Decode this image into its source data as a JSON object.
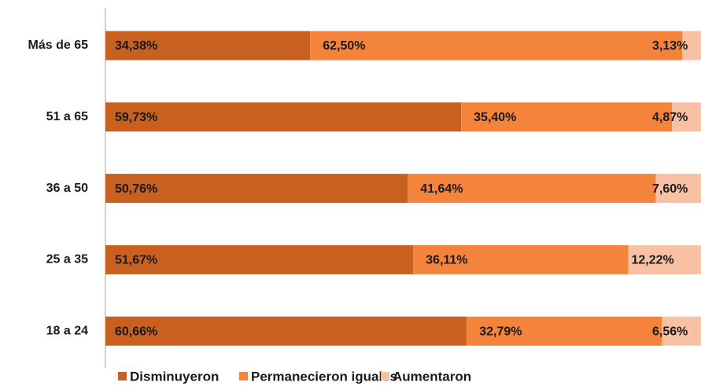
{
  "chart_data": {
    "type": "stacked-bar-horizontal",
    "categories": [
      "Más de 65",
      "51 a 65",
      "36 a 50",
      "25 a 35",
      "18 a 24"
    ],
    "series": [
      {
        "name": "Disminuyeron",
        "color": "#c8601f",
        "values": [
          34.38,
          59.73,
          50.76,
          51.67,
          60.66
        ],
        "value_labels": [
          "34,38%",
          "59,73%",
          "50,76%",
          "51,67%",
          "60,66%"
        ]
      },
      {
        "name": "Permanecieron iguales",
        "color": "#f4843c",
        "values": [
          62.5,
          35.4,
          41.64,
          36.11,
          32.79
        ],
        "value_labels": [
          "62,50%",
          "35,40%",
          "41,64%",
          "36,11%",
          "32,79%"
        ]
      },
      {
        "name": "Aumentaron",
        "color": "#f8c1a3",
        "values": [
          3.13,
          4.87,
          7.6,
          12.22,
          6.56
        ],
        "value_labels": [
          "3,13%",
          "4,87%",
          "7,60%",
          "12,22%",
          "6,56%"
        ]
      }
    ],
    "xlim": [
      0,
      100
    ],
    "legend": "bottom"
  }
}
